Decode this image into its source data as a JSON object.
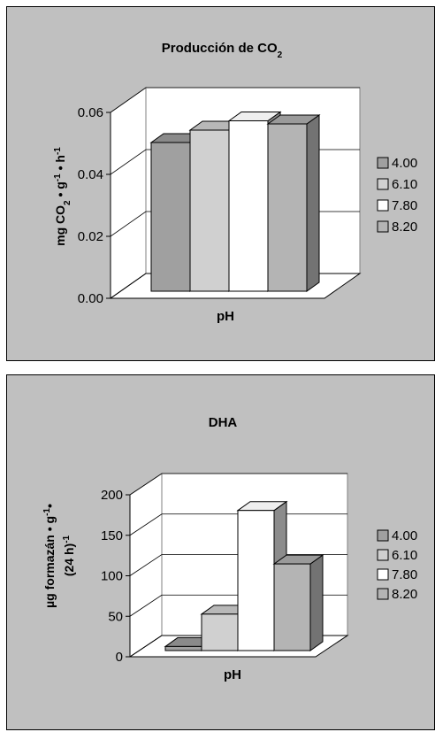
{
  "chart_data": [
    {
      "type": "bar",
      "title": "Producción de CO",
      "title_subscript": "2",
      "xlabel": "pH",
      "ylabel_parts": [
        "mg CO",
        "2",
        " • g",
        "-1",
        " • h",
        "-1"
      ],
      "ylim": [
        0,
        0.06
      ],
      "yticks": [
        "0.00",
        "0.02",
        "0.04",
        "0.06"
      ],
      "series": [
        {
          "name": "4.00",
          "value": 0.048
        },
        {
          "name": "6.10",
          "value": 0.052
        },
        {
          "name": "7.80",
          "value": 0.055
        },
        {
          "name": "8.20",
          "value": 0.054
        }
      ],
      "grid": true,
      "legend": "right"
    },
    {
      "type": "bar",
      "title": "DHA",
      "xlabel": "pH",
      "ylabel_line1_parts": [
        "µg formazán •  g",
        "-1",
        "•"
      ],
      "ylabel_line2_parts": [
        "(24 h)",
        "-1"
      ],
      "ylim": [
        0,
        200
      ],
      "yticks": [
        "0",
        "50",
        "100",
        "150",
        "200"
      ],
      "series": [
        {
          "name": "4.00",
          "value": 5
        },
        {
          "name": "6.10",
          "value": 45
        },
        {
          "name": "7.80",
          "value": 173
        },
        {
          "name": "8.20",
          "value": 107
        }
      ],
      "grid": true,
      "legend": "right"
    }
  ],
  "colors": {
    "panel_bg": "#c0c0c0",
    "plot_wall": "#ffffff",
    "series": [
      "#a0a0a0",
      "#d0d0d0",
      "#ffffff",
      "#b4b4b4"
    ],
    "series_side": [
      "#6e6e6e",
      "#7c7c7c",
      "#8c8c8c",
      "#737373"
    ],
    "series_top": [
      "#8a8a8a",
      "#b8b8b8",
      "#efefef",
      "#9a9a9a"
    ]
  }
}
